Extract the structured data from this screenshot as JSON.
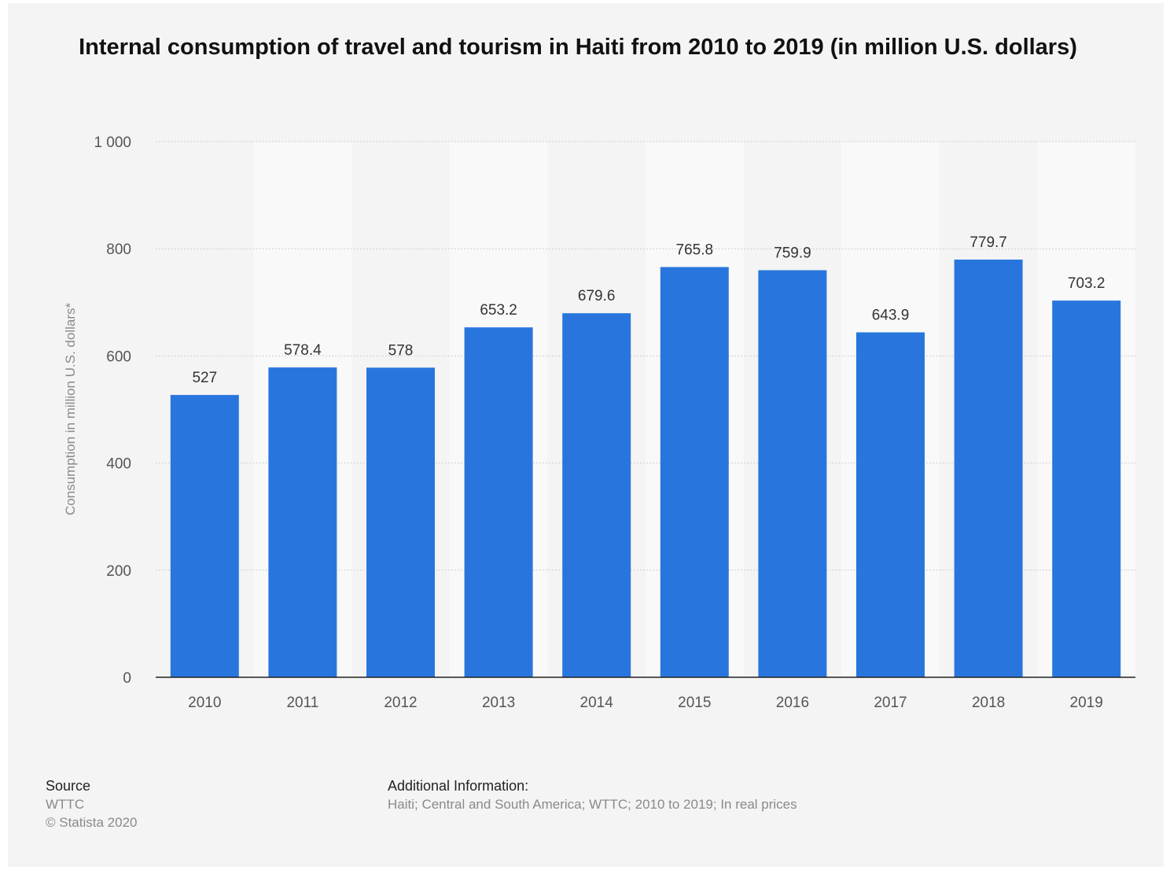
{
  "chart_data": {
    "type": "bar",
    "title": "Internal consumption of travel and tourism in Haiti from 2010 to 2019 (in million U.S. dollars)",
    "xlabel": "",
    "ylabel": "Consumption in million U.S. dollars*",
    "categories": [
      "2010",
      "2011",
      "2012",
      "2013",
      "2014",
      "2015",
      "2016",
      "2017",
      "2018",
      "2019"
    ],
    "values": [
      527,
      578.4,
      578,
      653.2,
      679.6,
      765.8,
      759.9,
      643.9,
      779.7,
      703.2
    ],
    "value_labels": [
      "527",
      "578.4",
      "578",
      "653.2",
      "679.6",
      "765.8",
      "759.9",
      "643.9",
      "779.7",
      "703.2"
    ],
    "ylim": [
      0,
      1000
    ],
    "yticks": [
      0,
      200,
      400,
      600,
      800,
      1000
    ],
    "ytick_labels": [
      "0",
      "200",
      "400",
      "600",
      "800",
      "1 000"
    ],
    "grid": true,
    "bar_color": "#2876dd"
  },
  "footer": {
    "source_heading": "Source",
    "source_name": "WTTC",
    "copyright": "© Statista 2020",
    "info_heading": "Additional Information:",
    "info_text": "Haiti; Central and South America; WTTC; 2010 to 2019; In real prices"
  }
}
